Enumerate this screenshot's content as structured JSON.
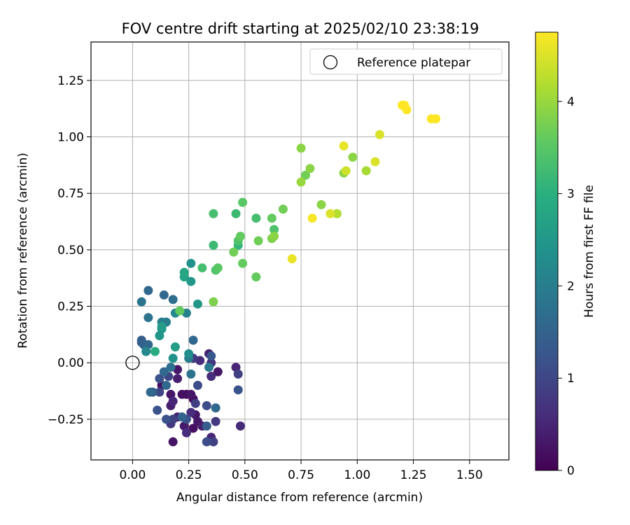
{
  "chart_data": {
    "type": "scatter",
    "title": "FOV centre drift starting at 2025/02/10 23:38:19",
    "xlabel": "Angular distance from reference (arcmin)",
    "ylabel": "Rotation from reference (arcmin)",
    "xlim": [
      -0.185,
      1.675
    ],
    "ylim": [
      -0.43,
      1.42
    ],
    "xticks": [
      "0.00",
      "0.25",
      "0.50",
      "0.75",
      "1.00",
      "1.25",
      "1.50"
    ],
    "yticks": [
      "−0.25",
      "0.00",
      "0.25",
      "0.50",
      "0.75",
      "1.00",
      "1.25"
    ],
    "grid": true,
    "legend": {
      "position": "top-right",
      "entries": [
        "Reference platepar"
      ]
    },
    "reference_point": {
      "x": 0.0,
      "y": 0.0,
      "marker": "open-circle"
    },
    "colorbar": {
      "label": "Hours from first FF file",
      "range": [
        0,
        4.75
      ],
      "ticks": [
        "0",
        "1",
        "2",
        "3",
        "4"
      ],
      "colormap": "viridis"
    },
    "points": [
      {
        "x": 0.18,
        "y": -0.35,
        "h": 0.25
      },
      {
        "x": 0.24,
        "y": -0.31,
        "h": 0.6
      },
      {
        "x": 0.29,
        "y": -0.26,
        "h": 0.3
      },
      {
        "x": 0.33,
        "y": -0.35,
        "h": 1.1
      },
      {
        "x": 0.36,
        "y": -0.35,
        "h": 0.9
      },
      {
        "x": 0.35,
        "y": -0.33,
        "h": 0.5
      },
      {
        "x": 0.31,
        "y": -0.28,
        "h": 0.4
      },
      {
        "x": 0.27,
        "y": -0.29,
        "h": 0.2
      },
      {
        "x": 0.23,
        "y": -0.28,
        "h": 0.35
      },
      {
        "x": 0.2,
        "y": -0.24,
        "h": 0.45
      },
      {
        "x": 0.17,
        "y": -0.27,
        "h": 0.8
      },
      {
        "x": 0.15,
        "y": -0.25,
        "h": 1.2
      },
      {
        "x": 0.18,
        "y": -0.25,
        "h": 0.9
      },
      {
        "x": 0.22,
        "y": -0.24,
        "h": 1.5
      },
      {
        "x": 0.24,
        "y": -0.25,
        "h": 1.2
      },
      {
        "x": 0.26,
        "y": -0.22,
        "h": 0.6
      },
      {
        "x": 0.28,
        "y": -0.23,
        "h": 0.3
      },
      {
        "x": 0.33,
        "y": -0.28,
        "h": 1.4
      },
      {
        "x": 0.37,
        "y": -0.26,
        "h": 0.8
      },
      {
        "x": 0.48,
        "y": -0.28,
        "h": 0.55
      },
      {
        "x": 0.37,
        "y": -0.2,
        "h": 1.6
      },
      {
        "x": 0.33,
        "y": -0.19,
        "h": 1.1
      },
      {
        "x": 0.28,
        "y": -0.18,
        "h": 0.9
      },
      {
        "x": 0.26,
        "y": -0.14,
        "h": 0.3
      },
      {
        "x": 0.22,
        "y": -0.14,
        "h": 0.2
      },
      {
        "x": 0.24,
        "y": -0.14,
        "h": 0.1
      },
      {
        "x": 0.27,
        "y": -0.16,
        "h": 0.15
      },
      {
        "x": 0.17,
        "y": -0.19,
        "h": 0.4
      },
      {
        "x": 0.18,
        "y": -0.17,
        "h": 0.5
      },
      {
        "x": 0.17,
        "y": -0.14,
        "h": 0.3
      },
      {
        "x": 0.11,
        "y": -0.21,
        "h": 1.2
      },
      {
        "x": 0.09,
        "y": -0.13,
        "h": 1.4
      },
      {
        "x": 0.12,
        "y": -0.13,
        "h": 1.0
      },
      {
        "x": 0.08,
        "y": -0.13,
        "h": 1.6
      },
      {
        "x": 0.15,
        "y": -0.1,
        "h": 1.6
      },
      {
        "x": 0.13,
        "y": -0.1,
        "h": 0.2
      },
      {
        "x": 0.2,
        "y": -0.07,
        "h": 0.4
      },
      {
        "x": 0.16,
        "y": -0.06,
        "h": 1.0
      },
      {
        "x": 0.12,
        "y": -0.07,
        "h": 1.2
      },
      {
        "x": 0.14,
        "y": -0.04,
        "h": 1.6
      },
      {
        "x": 0.17,
        "y": -0.02,
        "h": 1.7
      },
      {
        "x": 0.2,
        "y": -0.03,
        "h": 0.3
      },
      {
        "x": 0.26,
        "y": -0.05,
        "h": 1.8
      },
      {
        "x": 0.29,
        "y": -0.1,
        "h": 1.1
      },
      {
        "x": 0.35,
        "y": -0.06,
        "h": 0.6
      },
      {
        "x": 0.34,
        "y": -0.02,
        "h": 1.9
      },
      {
        "x": 0.35,
        "y": 0.0,
        "h": 0.7
      },
      {
        "x": 0.38,
        "y": -0.04,
        "h": 0.3
      },
      {
        "x": 0.46,
        "y": -0.02,
        "h": 0.5
      },
      {
        "x": 0.47,
        "y": -0.05,
        "h": 0.9
      },
      {
        "x": 0.47,
        "y": -0.12,
        "h": 1.2
      },
      {
        "x": 0.27,
        "y": 0.02,
        "h": 0.8
      },
      {
        "x": 0.3,
        "y": 0.01,
        "h": 0.6
      },
      {
        "x": 0.35,
        "y": 0.03,
        "h": 1.3
      },
      {
        "x": 0.34,
        "y": 0.04,
        "h": 0.4
      },
      {
        "x": 0.25,
        "y": 0.04,
        "h": 2.3
      },
      {
        "x": 0.25,
        "y": 0.02,
        "h": 2.0
      },
      {
        "x": 0.18,
        "y": 0.02,
        "h": 2.4
      },
      {
        "x": 0.19,
        "y": 0.07,
        "h": 2.6
      },
      {
        "x": 0.27,
        "y": 0.1,
        "h": 1.6
      },
      {
        "x": 0.1,
        "y": 0.05,
        "h": 2.9
      },
      {
        "x": 0.06,
        "y": 0.05,
        "h": 2.2
      },
      {
        "x": 0.07,
        "y": 0.08,
        "h": 1.6
      },
      {
        "x": 0.05,
        "y": 0.08,
        "h": 1.5
      },
      {
        "x": 0.04,
        "y": 0.09,
        "h": 1.3
      },
      {
        "x": 0.04,
        "y": 0.1,
        "h": 1.4
      },
      {
        "x": 0.12,
        "y": 0.12,
        "h": 2.5
      },
      {
        "x": 0.13,
        "y": 0.15,
        "h": 2.4
      },
      {
        "x": 0.13,
        "y": 0.16,
        "h": 2.6
      },
      {
        "x": 0.13,
        "y": 0.18,
        "h": 2.0
      },
      {
        "x": 0.15,
        "y": 0.18,
        "h": 2.0
      },
      {
        "x": 0.19,
        "y": 0.22,
        "h": 2.2
      },
      {
        "x": 0.21,
        "y": 0.23,
        "h": 3.6
      },
      {
        "x": 0.24,
        "y": 0.22,
        "h": 2.1
      },
      {
        "x": 0.07,
        "y": 0.2,
        "h": 1.8
      },
      {
        "x": 0.04,
        "y": 0.27,
        "h": 1.8
      },
      {
        "x": 0.07,
        "y": 0.32,
        "h": 1.6
      },
      {
        "x": 0.14,
        "y": 0.3,
        "h": 1.6
      },
      {
        "x": 0.18,
        "y": 0.28,
        "h": 1.7
      },
      {
        "x": 0.29,
        "y": 0.26,
        "h": 2.5
      },
      {
        "x": 0.26,
        "y": 0.36,
        "h": 2.5
      },
      {
        "x": 0.23,
        "y": 0.38,
        "h": 2.7
      },
      {
        "x": 0.23,
        "y": 0.4,
        "h": 2.8
      },
      {
        "x": 0.26,
        "y": 0.44,
        "h": 2.4
      },
      {
        "x": 0.31,
        "y": 0.42,
        "h": 3.3
      },
      {
        "x": 0.37,
        "y": 0.41,
        "h": 3.4
      },
      {
        "x": 0.38,
        "y": 0.42,
        "h": 3.5
      },
      {
        "x": 0.36,
        "y": 0.27,
        "h": 3.8
      },
      {
        "x": 0.36,
        "y": 0.52,
        "h": 3.2
      },
      {
        "x": 0.36,
        "y": 0.66,
        "h": 3.3
      },
      {
        "x": 0.46,
        "y": 0.66,
        "h": 3.2
      },
      {
        "x": 0.49,
        "y": 0.71,
        "h": 3.5
      },
      {
        "x": 0.47,
        "y": 0.52,
        "h": 3.1
      },
      {
        "x": 0.47,
        "y": 0.54,
        "h": 3.4
      },
      {
        "x": 0.48,
        "y": 0.56,
        "h": 3.6
      },
      {
        "x": 0.45,
        "y": 0.49,
        "h": 3.7
      },
      {
        "x": 0.49,
        "y": 0.44,
        "h": 3.6
      },
      {
        "x": 0.55,
        "y": 0.38,
        "h": 3.6
      },
      {
        "x": 0.55,
        "y": 0.64,
        "h": 3.3
      },
      {
        "x": 0.56,
        "y": 0.54,
        "h": 3.7
      },
      {
        "x": 0.62,
        "y": 0.55,
        "h": 3.8
      },
      {
        "x": 0.63,
        "y": 0.56,
        "h": 3.9
      },
      {
        "x": 0.63,
        "y": 0.59,
        "h": 3.4
      },
      {
        "x": 0.62,
        "y": 0.64,
        "h": 3.6
      },
      {
        "x": 0.67,
        "y": 0.68,
        "h": 3.7
      },
      {
        "x": 0.71,
        "y": 0.46,
        "h": 4.6
      },
      {
        "x": 0.75,
        "y": 0.8,
        "h": 4.0
      },
      {
        "x": 0.77,
        "y": 0.83,
        "h": 3.7
      },
      {
        "x": 0.79,
        "y": 0.86,
        "h": 3.9
      },
      {
        "x": 0.75,
        "y": 0.95,
        "h": 3.9
      },
      {
        "x": 0.8,
        "y": 0.64,
        "h": 4.7
      },
      {
        "x": 0.84,
        "y": 0.7,
        "h": 3.9
      },
      {
        "x": 0.88,
        "y": 0.66,
        "h": 4.5
      },
      {
        "x": 0.91,
        "y": 0.66,
        "h": 4.2
      },
      {
        "x": 0.94,
        "y": 0.84,
        "h": 3.9
      },
      {
        "x": 0.95,
        "y": 0.85,
        "h": 4.4
      },
      {
        "x": 0.94,
        "y": 0.96,
        "h": 4.6
      },
      {
        "x": 0.98,
        "y": 0.91,
        "h": 3.9
      },
      {
        "x": 1.04,
        "y": 0.85,
        "h": 4.1
      },
      {
        "x": 1.08,
        "y": 0.89,
        "h": 4.5
      },
      {
        "x": 1.1,
        "y": 1.01,
        "h": 4.5
      },
      {
        "x": 1.2,
        "y": 1.14,
        "h": 4.8
      },
      {
        "x": 1.21,
        "y": 1.14,
        "h": 4.8
      },
      {
        "x": 1.22,
        "y": 1.12,
        "h": 4.8
      },
      {
        "x": 1.33,
        "y": 1.08,
        "h": 4.8
      },
      {
        "x": 1.35,
        "y": 1.08,
        "h": 4.8
      }
    ]
  }
}
